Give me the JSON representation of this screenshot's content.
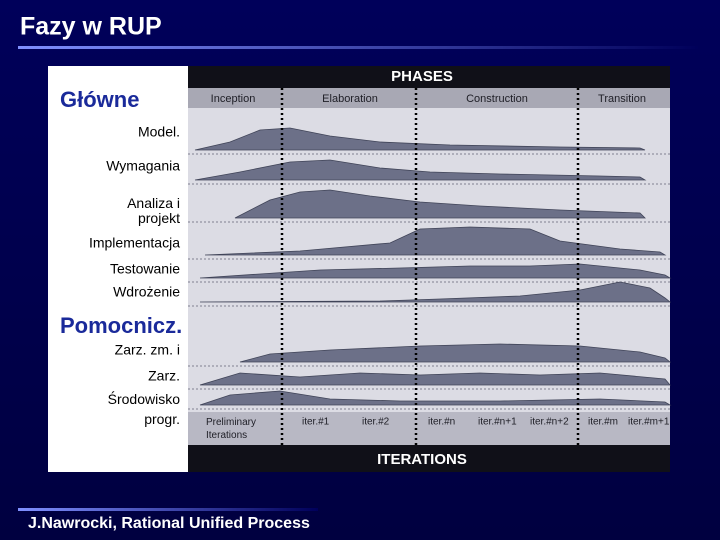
{
  "title": "Fazy w RUP",
  "footer": "J.Nawrocki, Rational Unified Process",
  "main_group": {
    "title": "Główne",
    "disciplines": [
      "Model.",
      "Wymagania",
      "Analiza i projekt",
      "Implementacja",
      "Testowanie",
      "Wdrożenie"
    ]
  },
  "support_group": {
    "title": "Pomocnicz.",
    "disciplines": [
      "Zarz. zm. i",
      "Zarz.",
      "Środowisko progr."
    ]
  },
  "phases": {
    "title": "PHASES",
    "items": [
      "Inception",
      "Elaboration",
      "Construction",
      "Transition"
    ]
  },
  "iterations": {
    "title": "ITERATIONS",
    "items": [
      "Preliminary Iterations",
      "iter.#1",
      "iter.#2",
      "iter.#n",
      "iter.#n+1",
      "iter.#n+2",
      "iter.#m",
      "iter.#m+1"
    ]
  }
}
